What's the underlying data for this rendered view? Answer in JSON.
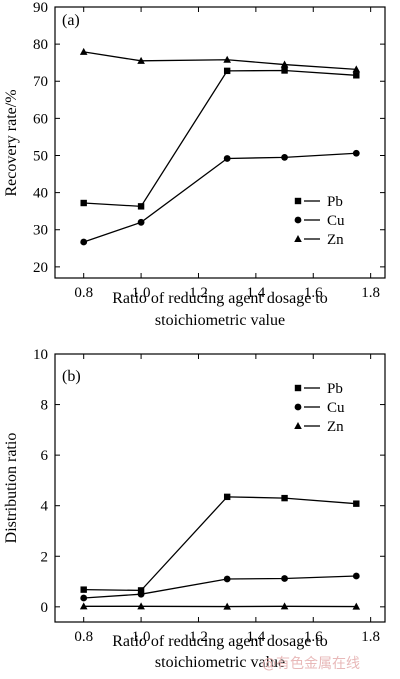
{
  "chart_data": [
    {
      "type": "line",
      "panel_label": "(a)",
      "xlabel": [
        "Ratio of reducing agent dosage to",
        "stoichiometric value"
      ],
      "ylabel": "Recovery rate/%",
      "xlim": [
        0.7,
        1.85
      ],
      "ylim": [
        17,
        90
      ],
      "xticks": [
        0.8,
        1.0,
        1.2,
        1.4,
        1.6,
        1.8
      ],
      "xtick_labels": [
        "0.8",
        "1.0",
        "1.2",
        "1.4",
        "1.6",
        "1.8"
      ],
      "yticks": [
        20,
        30,
        40,
        50,
        60,
        70,
        80,
        90
      ],
      "ytick_labels": [
        "20",
        "30",
        "40",
        "50",
        "60",
        "70",
        "80",
        "90"
      ],
      "legend_position": "lower-right",
      "x": [
        0.8,
        1.0,
        1.3,
        1.5,
        1.75
      ],
      "series": [
        {
          "name": "Pb",
          "marker": "square",
          "values": [
            37.2,
            36.3,
            72.8,
            72.9,
            71.6
          ]
        },
        {
          "name": "Cu",
          "marker": "circle",
          "values": [
            26.7,
            32.0,
            49.2,
            49.5,
            50.6
          ]
        },
        {
          "name": "Zn",
          "marker": "triangle",
          "values": [
            77.9,
            75.5,
            75.8,
            74.5,
            73.2
          ]
        }
      ]
    },
    {
      "type": "line",
      "panel_label": "(b)",
      "xlabel": [
        "Ratio of reducing agent dosage to",
        "stoichiometric value"
      ],
      "ylabel": "Distribution ratio",
      "xlim": [
        0.7,
        1.85
      ],
      "ylim": [
        -0.6,
        10
      ],
      "xticks": [
        0.8,
        1.0,
        1.2,
        1.4,
        1.6,
        1.8
      ],
      "xtick_labels": [
        "0.8",
        "1.0",
        "1.2",
        "1.4",
        "1.6",
        "1.8"
      ],
      "yticks": [
        0,
        2,
        4,
        6,
        8,
        10
      ],
      "ytick_labels": [
        "0",
        "2",
        "4",
        "6",
        "8",
        "10"
      ],
      "legend_position": "upper-right",
      "x": [
        0.8,
        1.0,
        1.3,
        1.5,
        1.75
      ],
      "series": [
        {
          "name": "Pb",
          "marker": "square",
          "values": [
            0.68,
            0.65,
            4.35,
            4.3,
            4.08
          ]
        },
        {
          "name": "Cu",
          "marker": "circle",
          "values": [
            0.35,
            0.5,
            1.1,
            1.12,
            1.22
          ]
        },
        {
          "name": "Zn",
          "marker": "triangle",
          "values": [
            0.02,
            0.02,
            0.01,
            0.02,
            0.01
          ]
        }
      ]
    }
  ],
  "watermark": "@有色金属在线"
}
